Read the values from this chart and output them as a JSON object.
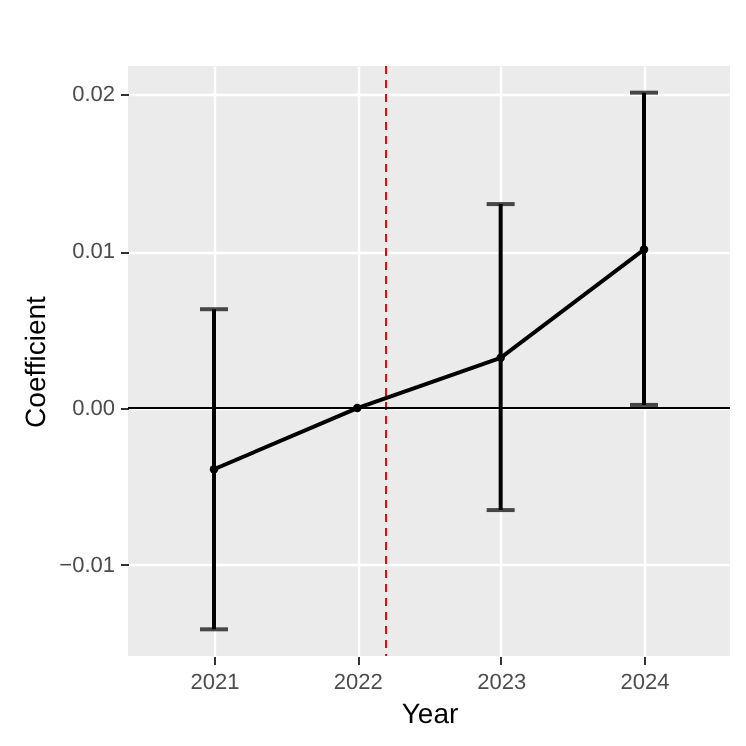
{
  "chart_data": {
    "type": "line",
    "xlabel": "Year",
    "ylabel": "Coefficient",
    "x": [
      2021,
      2022,
      2023,
      2024
    ],
    "series": [
      {
        "color": "#000000",
        "values": [
          -0.0039,
          0,
          0.0032,
          0.0101
        ],
        "errors": [
          [
            -0.0141,
            0.0063
          ],
          null,
          [
            -0.0065,
            0.013
          ],
          [
            0.0002,
            0.0201
          ]
        ]
      }
    ],
    "xlim": [
      2020.4,
      2024.6
    ],
    "xticks": [
      2021,
      2022,
      2023,
      2024
    ],
    "ylim": [
      -0.0158,
      0.0218
    ],
    "yticks": [
      {
        "value": -0.01,
        "label": "−0.01"
      },
      {
        "value": 0,
        "label": "0.00"
      },
      0.01,
      0.02
    ],
    "ref_lines": [
      {
        "axis": "x",
        "value": 2022.2,
        "color": "#ff0000",
        "line_style": "dashed"
      },
      {
        "axis": "y",
        "value": 0,
        "color": "#000000",
        "line_style": "solid"
      }
    ],
    "grid": true,
    "marker": "circle",
    "line_style": "solid"
  }
}
